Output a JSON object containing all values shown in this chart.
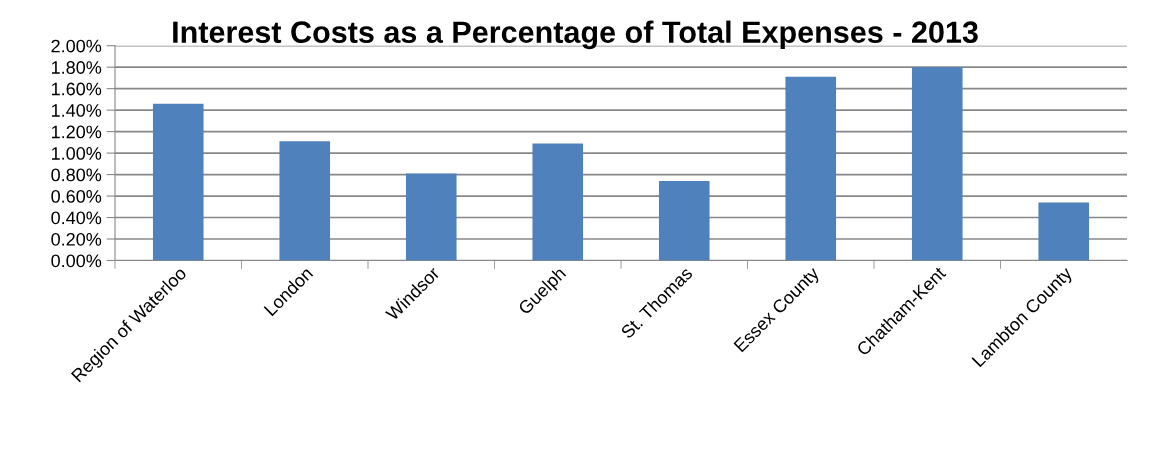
{
  "chart_data": {
    "type": "bar",
    "title": "Interest Costs as a Percentage of Total Expenses - 2013",
    "categories": [
      "Region of Waterloo",
      "London",
      "Windsor",
      "Guelph",
      "St. Thomas",
      "Essex County",
      "Chatham-Kent",
      "Lambton County"
    ],
    "values": [
      1.46,
      1.11,
      0.81,
      1.09,
      0.74,
      1.71,
      1.8,
      0.54
    ],
    "color": "#4f81bd",
    "ylim": [
      0,
      2
    ],
    "yticks": [
      {
        "value": 0,
        "label": "0.00%"
      },
      {
        "value": 0.2,
        "label": "0.20%"
      },
      {
        "value": 0.4,
        "label": "0.40%"
      },
      {
        "value": 0.6,
        "label": "0.60%"
      },
      {
        "value": 0.8,
        "label": "0.80%"
      },
      {
        "value": 1.0,
        "label": "1.00%"
      },
      {
        "value": 1.2,
        "label": "1.20%"
      },
      {
        "value": 1.4,
        "label": "1.40%"
      },
      {
        "value": 1.6,
        "label": "1.60%"
      },
      {
        "value": 1.8,
        "label": "1.80%"
      },
      {
        "value": 2.0,
        "label": "2.00%"
      }
    ],
    "grid": "y"
  }
}
